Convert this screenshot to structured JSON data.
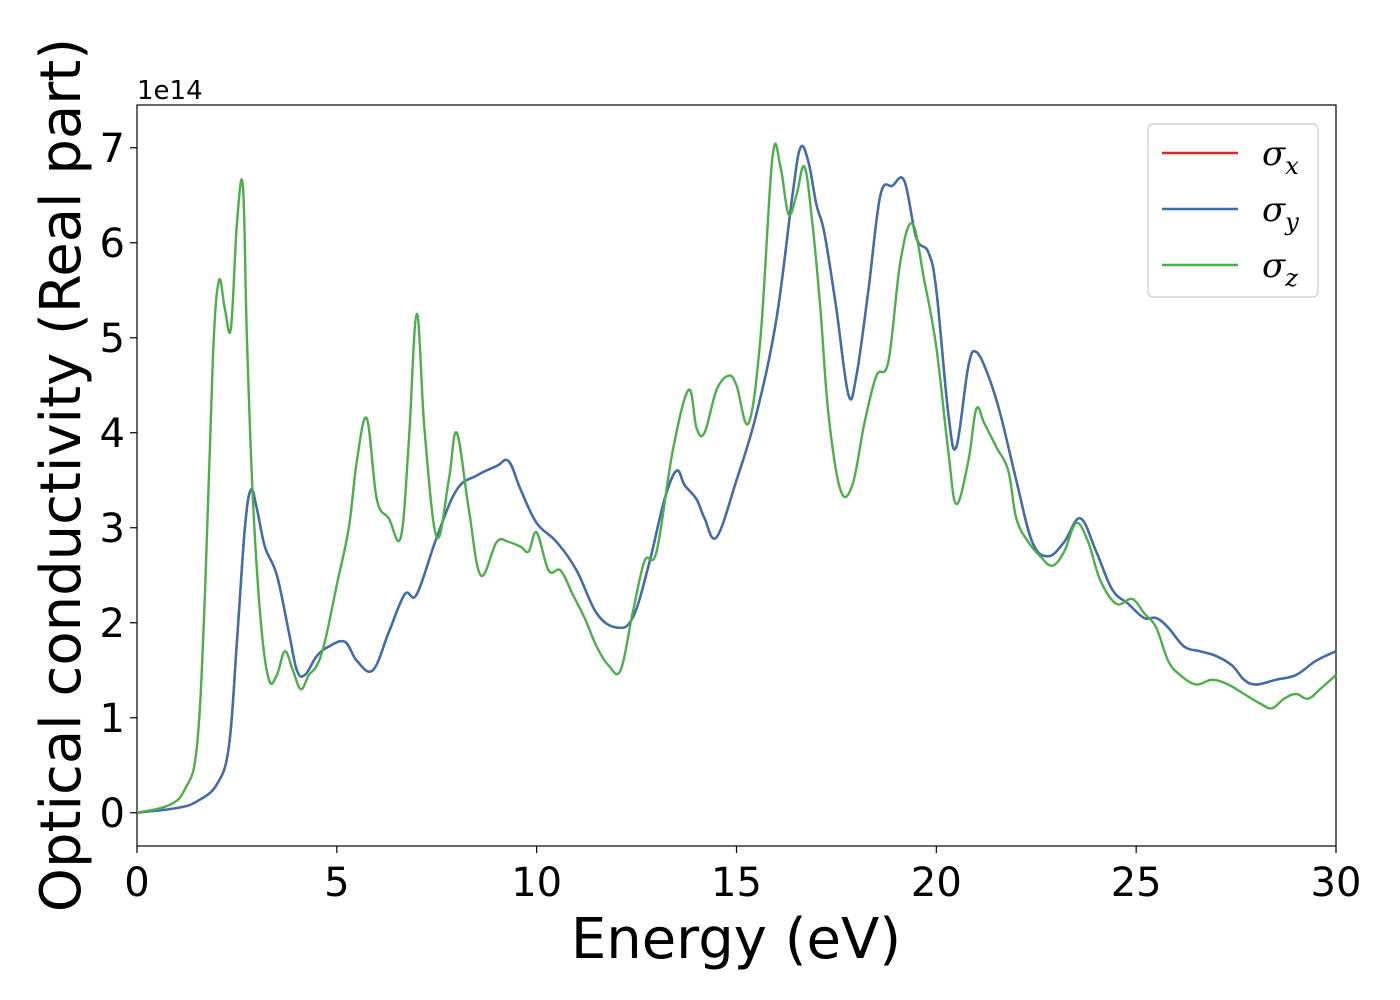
{
  "chart_data": {
    "type": "line",
    "xlabel": "Energy (eV)",
    "ylabel": "Optical conductivity (Real part)",
    "y_offset_label": "1e14",
    "xlim": [
      0,
      30
    ],
    "ylim": [
      -0.35,
      7.45
    ],
    "x_ticks": [
      0,
      5,
      10,
      15,
      20,
      25,
      30
    ],
    "x_tick_labels": [
      "0",
      "5",
      "10",
      "15",
      "20",
      "25",
      "30"
    ],
    "y_ticks": [
      0,
      1,
      2,
      3,
      4,
      5,
      6,
      7
    ],
    "y_tick_labels": [
      "0",
      "1",
      "2",
      "3",
      "4",
      "5",
      "6",
      "7"
    ],
    "grid": false,
    "legend_position": "top-right",
    "series": [
      {
        "name": "σx",
        "symbol": "σ",
        "subscript": "x",
        "color": "#d62728",
        "x": [
          0,
          1,
          1.5,
          2,
          2.3,
          2.5,
          2.7,
          2.85,
          3.0,
          3.2,
          3.5,
          3.8,
          4.0,
          4.2,
          4.5,
          4.8,
          5.2,
          5.5,
          5.9,
          6.3,
          6.7,
          7.0,
          7.5,
          8.0,
          8.5,
          9.0,
          9.3,
          9.6,
          10.0,
          10.5,
          11.0,
          11.5,
          12.0,
          12.4,
          12.8,
          13.2,
          13.5,
          13.7,
          14.0,
          14.2,
          14.5,
          15.0,
          15.5,
          16.0,
          16.4,
          16.6,
          16.8,
          17.0,
          17.2,
          17.5,
          17.8,
          18.0,
          18.3,
          18.6,
          18.9,
          19.2,
          19.5,
          19.8,
          20.0,
          20.3,
          20.5,
          20.8,
          21.0,
          21.3,
          21.6,
          22.0,
          22.4,
          22.8,
          23.2,
          23.6,
          24.0,
          24.4,
          24.8,
          25.2,
          25.5,
          25.8,
          26.2,
          26.6,
          27.0,
          27.4,
          27.7,
          28.0,
          28.5,
          29.0,
          29.5,
          30.0
        ],
        "y": [
          0,
          0.05,
          0.12,
          0.3,
          0.7,
          1.8,
          3.0,
          3.4,
          3.2,
          2.8,
          2.5,
          1.9,
          1.5,
          1.45,
          1.65,
          1.75,
          1.8,
          1.6,
          1.5,
          1.9,
          2.3,
          2.3,
          2.9,
          3.4,
          3.55,
          3.65,
          3.7,
          3.4,
          3.05,
          2.85,
          2.55,
          2.1,
          1.95,
          2.05,
          2.6,
          3.3,
          3.6,
          3.45,
          3.3,
          3.1,
          2.9,
          3.5,
          4.2,
          5.2,
          6.5,
          7.0,
          6.85,
          6.4,
          6.1,
          5.3,
          4.4,
          4.6,
          5.5,
          6.5,
          6.6,
          6.65,
          6.05,
          5.9,
          5.5,
          4.2,
          3.85,
          4.7,
          4.85,
          4.6,
          4.2,
          3.5,
          2.85,
          2.7,
          2.85,
          3.1,
          2.75,
          2.35,
          2.2,
          2.05,
          2.05,
          1.95,
          1.75,
          1.7,
          1.65,
          1.55,
          1.4,
          1.35,
          1.4,
          1.45,
          1.6,
          1.7
        ]
      },
      {
        "name": "σy",
        "symbol": "σ",
        "subscript": "y",
        "color": "#3a6fb0",
        "x": [
          0,
          1,
          1.5,
          2,
          2.3,
          2.5,
          2.7,
          2.85,
          3.0,
          3.2,
          3.5,
          3.8,
          4.0,
          4.2,
          4.5,
          4.8,
          5.2,
          5.5,
          5.9,
          6.3,
          6.7,
          7.0,
          7.5,
          8.0,
          8.5,
          9.0,
          9.3,
          9.6,
          10.0,
          10.5,
          11.0,
          11.5,
          12.0,
          12.4,
          12.8,
          13.2,
          13.5,
          13.7,
          14.0,
          14.2,
          14.5,
          15.0,
          15.5,
          16.0,
          16.4,
          16.6,
          16.8,
          17.0,
          17.2,
          17.5,
          17.8,
          18.0,
          18.3,
          18.6,
          18.9,
          19.2,
          19.5,
          19.8,
          20.0,
          20.3,
          20.5,
          20.8,
          21.0,
          21.3,
          21.6,
          22.0,
          22.4,
          22.8,
          23.2,
          23.6,
          24.0,
          24.4,
          24.8,
          25.2,
          25.5,
          25.8,
          26.2,
          26.6,
          27.0,
          27.4,
          27.7,
          28.0,
          28.5,
          29.0,
          29.5,
          30.0
        ],
        "y": [
          0,
          0.05,
          0.12,
          0.3,
          0.7,
          1.8,
          3.0,
          3.4,
          3.2,
          2.8,
          2.5,
          1.9,
          1.5,
          1.45,
          1.65,
          1.75,
          1.8,
          1.6,
          1.5,
          1.9,
          2.3,
          2.3,
          2.9,
          3.4,
          3.55,
          3.65,
          3.7,
          3.4,
          3.05,
          2.85,
          2.55,
          2.1,
          1.95,
          2.05,
          2.6,
          3.3,
          3.6,
          3.45,
          3.3,
          3.1,
          2.9,
          3.5,
          4.2,
          5.2,
          6.5,
          7.0,
          6.85,
          6.4,
          6.1,
          5.3,
          4.4,
          4.6,
          5.5,
          6.5,
          6.6,
          6.65,
          6.05,
          5.9,
          5.5,
          4.2,
          3.85,
          4.7,
          4.85,
          4.6,
          4.2,
          3.5,
          2.85,
          2.7,
          2.85,
          3.1,
          2.75,
          2.35,
          2.2,
          2.05,
          2.05,
          1.95,
          1.75,
          1.7,
          1.65,
          1.55,
          1.4,
          1.35,
          1.4,
          1.45,
          1.6,
          1.7
        ]
      },
      {
        "name": "σz",
        "symbol": "σ",
        "subscript": "z",
        "color": "#4daf4a",
        "x": [
          0,
          0.8,
          1.2,
          1.5,
          1.7,
          1.9,
          2.05,
          2.2,
          2.35,
          2.5,
          2.65,
          2.75,
          2.9,
          3.1,
          3.3,
          3.5,
          3.7,
          3.9,
          4.1,
          4.3,
          4.5,
          4.7,
          5.0,
          5.3,
          5.5,
          5.75,
          6.0,
          6.3,
          6.6,
          6.8,
          7.0,
          7.2,
          7.5,
          7.8,
          8.0,
          8.3,
          8.6,
          9.0,
          9.3,
          9.6,
          9.8,
          10.0,
          10.3,
          10.6,
          10.9,
          11.2,
          11.5,
          11.8,
          12.1,
          12.4,
          12.7,
          13.0,
          13.4,
          13.8,
          14.0,
          14.2,
          14.5,
          14.8,
          15.0,
          15.3,
          15.6,
          15.9,
          16.1,
          16.3,
          16.5,
          16.7,
          16.9,
          17.1,
          17.3,
          17.6,
          17.9,
          18.2,
          18.5,
          18.8,
          19.1,
          19.4,
          19.7,
          20.0,
          20.3,
          20.5,
          20.8,
          21.0,
          21.2,
          21.5,
          21.8,
          22.0,
          22.3,
          22.6,
          22.9,
          23.2,
          23.5,
          23.8,
          24.1,
          24.5,
          24.9,
          25.2,
          25.5,
          25.8,
          26.1,
          26.5,
          26.9,
          27.3,
          27.7,
          28.1,
          28.4,
          28.7,
          29.0,
          29.3,
          29.6,
          30.0
        ],
        "y": [
          0,
          0.08,
          0.25,
          0.7,
          2.3,
          4.8,
          5.6,
          5.3,
          5.1,
          6.2,
          6.6,
          5.0,
          3.3,
          2.0,
          1.4,
          1.45,
          1.7,
          1.5,
          1.3,
          1.45,
          1.55,
          1.8,
          2.4,
          3.0,
          3.7,
          4.15,
          3.3,
          3.1,
          2.9,
          3.9,
          5.25,
          4.0,
          2.9,
          3.5,
          4.0,
          3.2,
          2.5,
          2.85,
          2.85,
          2.8,
          2.75,
          2.95,
          2.55,
          2.55,
          2.3,
          2.05,
          1.75,
          1.55,
          1.5,
          2.1,
          2.65,
          2.75,
          3.8,
          4.45,
          4.05,
          4.0,
          4.45,
          4.6,
          4.5,
          4.1,
          5.0,
          6.9,
          6.8,
          6.3,
          6.5,
          6.8,
          6.2,
          5.3,
          4.2,
          3.4,
          3.45,
          4.1,
          4.6,
          4.75,
          5.8,
          6.2,
          5.6,
          4.9,
          3.8,
          3.25,
          3.7,
          4.25,
          4.1,
          3.85,
          3.6,
          3.1,
          2.85,
          2.7,
          2.6,
          2.75,
          3.05,
          2.85,
          2.45,
          2.2,
          2.25,
          2.1,
          1.95,
          1.6,
          1.45,
          1.35,
          1.4,
          1.35,
          1.25,
          1.15,
          1.1,
          1.2,
          1.25,
          1.2,
          1.3,
          1.45
        ]
      }
    ]
  }
}
